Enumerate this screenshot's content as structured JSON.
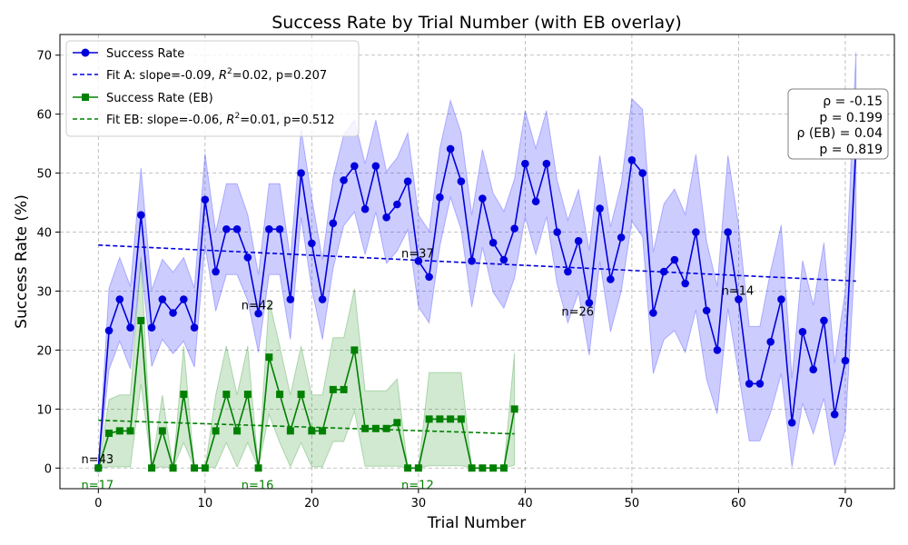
{
  "chart_data": {
    "type": "line",
    "title": "Success Rate by Trial Number (with EB overlay)",
    "xlabel": "Trial Number",
    "ylabel": "Success Rate (%)",
    "xlim": [
      -3.6,
      74.6
    ],
    "ylim": [
      -3.5,
      73.5
    ],
    "xticks": [
      0,
      10,
      20,
      30,
      40,
      50,
      60,
      70
    ],
    "yticks": [
      0,
      10,
      20,
      30,
      40,
      50,
      60,
      70
    ],
    "grid": true,
    "legend_position": "top-left",
    "series": [
      {
        "name": "Success Rate",
        "color": "#0000dd",
        "band_color": "#0000ff",
        "marker": "circle",
        "x": [
          0,
          1,
          2,
          3,
          4,
          5,
          6,
          7,
          8,
          9,
          10,
          11,
          12,
          13,
          14,
          15,
          16,
          17,
          18,
          19,
          20,
          21,
          22,
          23,
          24,
          25,
          26,
          27,
          28,
          29,
          30,
          31,
          32,
          33,
          34,
          35,
          36,
          37,
          38,
          39,
          40,
          41,
          42,
          43,
          44,
          45,
          46,
          47,
          48,
          49,
          50,
          51,
          52,
          53,
          54,
          55,
          56,
          57,
          58,
          59,
          60,
          61,
          62,
          63,
          64,
          65,
          66,
          67,
          68,
          69,
          70,
          71
        ],
        "y": [
          0,
          23.3,
          28.6,
          23.8,
          42.9,
          23.8,
          28.6,
          26.3,
          28.6,
          23.8,
          45.5,
          33.3,
          40.5,
          40.5,
          35.7,
          26.2,
          40.5,
          40.5,
          28.6,
          50.0,
          38.1,
          28.6,
          41.5,
          48.8,
          51.2,
          43.9,
          51.2,
          42.5,
          44.7,
          48.6,
          35.1,
          32.4,
          45.9,
          54.1,
          48.6,
          35.1,
          45.7,
          38.2,
          35.3,
          40.6,
          51.6,
          45.2,
          51.6,
          40.0,
          33.3,
          38.5,
          28.0,
          44.0,
          32.0,
          39.1,
          52.2,
          50.0,
          26.3,
          33.3,
          35.3,
          31.3,
          40.0,
          26.7,
          20.0,
          40.0,
          28.6,
          14.3,
          14.3,
          21.4,
          28.6,
          7.7,
          23.1,
          16.7,
          25.0,
          9.1,
          18.2,
          54.5
        ],
        "upper": [
          0,
          30.5,
          35.7,
          30.8,
          50.9,
          30.2,
          35.4,
          33.2,
          35.7,
          30.5,
          53.3,
          40.0,
          48.2,
          48.2,
          43.0,
          32.8,
          48.2,
          48.2,
          35.4,
          57.5,
          45.8,
          35.4,
          49.2,
          56.5,
          59.0,
          51.6,
          59.0,
          50.3,
          52.6,
          56.8,
          42.9,
          40.2,
          54.2,
          62.3,
          56.8,
          42.9,
          54.0,
          46.6,
          43.5,
          49.0,
          60.6,
          54.2,
          60.6,
          48.8,
          42.0,
          47.2,
          36.9,
          53.0,
          40.9,
          48.2,
          62.6,
          60.8,
          36.6,
          44.8,
          47.3,
          43.0,
          53.2,
          38.4,
          30.8,
          53.0,
          41.2,
          24.0,
          24.0,
          33.4,
          41.2,
          15.2,
          35.2,
          27.6,
          38.2,
          17.8,
          30.0,
          70.5
        ],
        "lower": [
          0,
          16.7,
          21.5,
          16.8,
          34.9,
          17.2,
          21.8,
          19.4,
          21.5,
          17.1,
          37.7,
          26.6,
          32.8,
          32.8,
          28.4,
          19.6,
          32.8,
          32.8,
          21.8,
          42.5,
          30.4,
          21.8,
          33.8,
          41.1,
          43.4,
          36.2,
          43.4,
          34.7,
          36.8,
          40.4,
          27.3,
          24.6,
          37.6,
          45.9,
          40.4,
          27.3,
          37.4,
          29.8,
          27.1,
          32.2,
          42.6,
          36.2,
          42.6,
          31.2,
          24.6,
          29.8,
          19.1,
          35.0,
          23.1,
          30.0,
          41.8,
          39.2,
          16.0,
          21.8,
          23.3,
          19.6,
          26.8,
          15.0,
          9.2,
          27.0,
          16.0,
          4.6,
          4.6,
          9.4,
          16.0,
          0.2,
          11.0,
          5.8,
          11.8,
          0.4,
          6.4,
          38.5
        ]
      },
      {
        "name": "Success Rate (EB)",
        "color": "#008000",
        "band_color": "#008000",
        "marker": "square",
        "x": [
          0,
          1,
          2,
          3,
          4,
          5,
          6,
          7,
          8,
          9,
          10,
          11,
          12,
          13,
          14,
          15,
          16,
          17,
          18,
          19,
          20,
          21,
          22,
          23,
          24,
          25,
          26,
          27,
          28,
          29,
          30,
          31,
          32,
          33,
          34,
          35,
          36,
          37,
          38,
          39
        ],
        "y": [
          0,
          5.9,
          6.3,
          6.3,
          25.0,
          0,
          6.3,
          0,
          12.5,
          0,
          0,
          6.3,
          12.5,
          6.3,
          12.5,
          0,
          18.8,
          12.5,
          6.3,
          12.5,
          6.3,
          6.3,
          13.3,
          13.3,
          20.0,
          6.7,
          6.7,
          6.7,
          7.7,
          0,
          0,
          8.3,
          8.3,
          8.3,
          8.3,
          0,
          0,
          0,
          0,
          10.0
        ],
        "upper": [
          0,
          11.6,
          12.4,
          12.4,
          35.8,
          0,
          12.4,
          0,
          20.7,
          0,
          0,
          12.4,
          20.7,
          12.4,
          20.7,
          0,
          28.5,
          20.7,
          12.4,
          20.7,
          12.4,
          12.4,
          22.1,
          22.1,
          30.4,
          13.1,
          13.1,
          13.1,
          15.1,
          0,
          0,
          16.2,
          16.2,
          16.2,
          16.2,
          0,
          0,
          0,
          0,
          19.5
        ],
        "lower": [
          0,
          0.2,
          0.2,
          0.2,
          14.2,
          0,
          0.2,
          0,
          4.3,
          0,
          0,
          0.2,
          4.3,
          0.2,
          4.3,
          0,
          9.1,
          4.3,
          0.2,
          4.3,
          0.2,
          0.2,
          4.5,
          4.5,
          9.6,
          0.3,
          0.3,
          0.3,
          0.3,
          0,
          0,
          0.4,
          0.4,
          0.4,
          0.4,
          0,
          0,
          0,
          0,
          0.5
        ]
      }
    ],
    "fits": [
      {
        "name": "Fit A: slope=-0.09, $R^2$=0.02, p=0.207",
        "label_prefix": "Fit A: slope=-0.09, ",
        "label_suffix": "=0.02, p=0.207",
        "color": "#0000dd",
        "x": [
          0,
          71
        ],
        "y": [
          37.8,
          31.7
        ]
      },
      {
        "name": "Fit EB: slope=-0.06, $R^2$=0.01, p=0.512",
        "label_prefix": "Fit EB: slope=-0.06, ",
        "label_suffix": "=0.01, p=0.512",
        "color": "#008000",
        "x": [
          0,
          39
        ],
        "y": [
          8.1,
          5.8
        ]
      }
    ],
    "r_label": "R",
    "r_exp": "2",
    "n_annotations": [
      {
        "text": "n=43",
        "x": -1.6,
        "y": 0.8,
        "color": "#000000"
      },
      {
        "text": "n=42",
        "x": 13.4,
        "y": 26.9,
        "color": "#000000"
      },
      {
        "text": "n=37",
        "x": 28.4,
        "y": 35.7,
        "color": "#000000"
      },
      {
        "text": "n=26",
        "x": 43.4,
        "y": 25.8,
        "color": "#000000"
      },
      {
        "text": "n=14",
        "x": 58.4,
        "y": 29.4,
        "color": "#000000"
      },
      {
        "text": "n=17",
        "x": -1.6,
        "y": -3.6,
        "color": "#008000"
      },
      {
        "text": "n=16",
        "x": 13.4,
        "y": -3.6,
        "color": "#008000"
      },
      {
        "text": "n=12",
        "x": 28.4,
        "y": -3.6,
        "color": "#008000"
      }
    ],
    "stats_box": [
      "ρ = -0.15",
      "p = 0.199",
      "ρ (EB) = 0.04",
      "p = 0.819"
    ]
  }
}
